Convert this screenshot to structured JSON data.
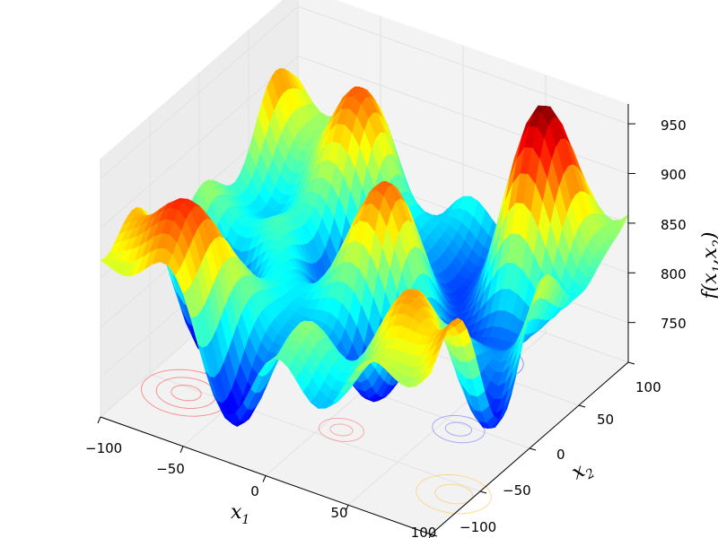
{
  "chart_data": {
    "type": "surface3d",
    "title": "",
    "xlabel": "x",
    "xlabel_sub": "1",
    "ylabel": "x",
    "ylabel_sub": "2",
    "zlabel_prefix": "f(",
    "zlabel_x": "x",
    "zlabel_x_sub": "1",
    "zlabel_sep": ",",
    "zlabel_y": "x",
    "zlabel_y_sub": "2",
    "zlabel_suffix": ")",
    "xlim": [
      -100,
      100
    ],
    "ylim": [
      -100,
      100
    ],
    "zlim": [
      710,
      970
    ],
    "x_ticks": [
      "−100",
      "−50",
      "0",
      "50",
      "100"
    ],
    "y_ticks": [
      "−100",
      "−50",
      "0",
      "50",
      "100"
    ],
    "z_ticks": [
      "750",
      "800",
      "850",
      "900",
      "950"
    ],
    "x_tick_values": [
      -100,
      -50,
      0,
      50,
      100
    ],
    "y_tick_values": [
      -100,
      -50,
      0,
      50,
      100
    ],
    "z_tick_values": [
      750,
      800,
      850,
      900,
      950
    ],
    "colormap": "jet",
    "colormap_colors": [
      "#00007f",
      "#0000ff",
      "#007fff",
      "#00ffff",
      "#7fff7f",
      "#ffff00",
      "#ff7f00",
      "#ff0000",
      "#7f0000"
    ],
    "contour_projection_on_floor": true,
    "grid": true,
    "pane_color": "#f2f2f2"
  }
}
